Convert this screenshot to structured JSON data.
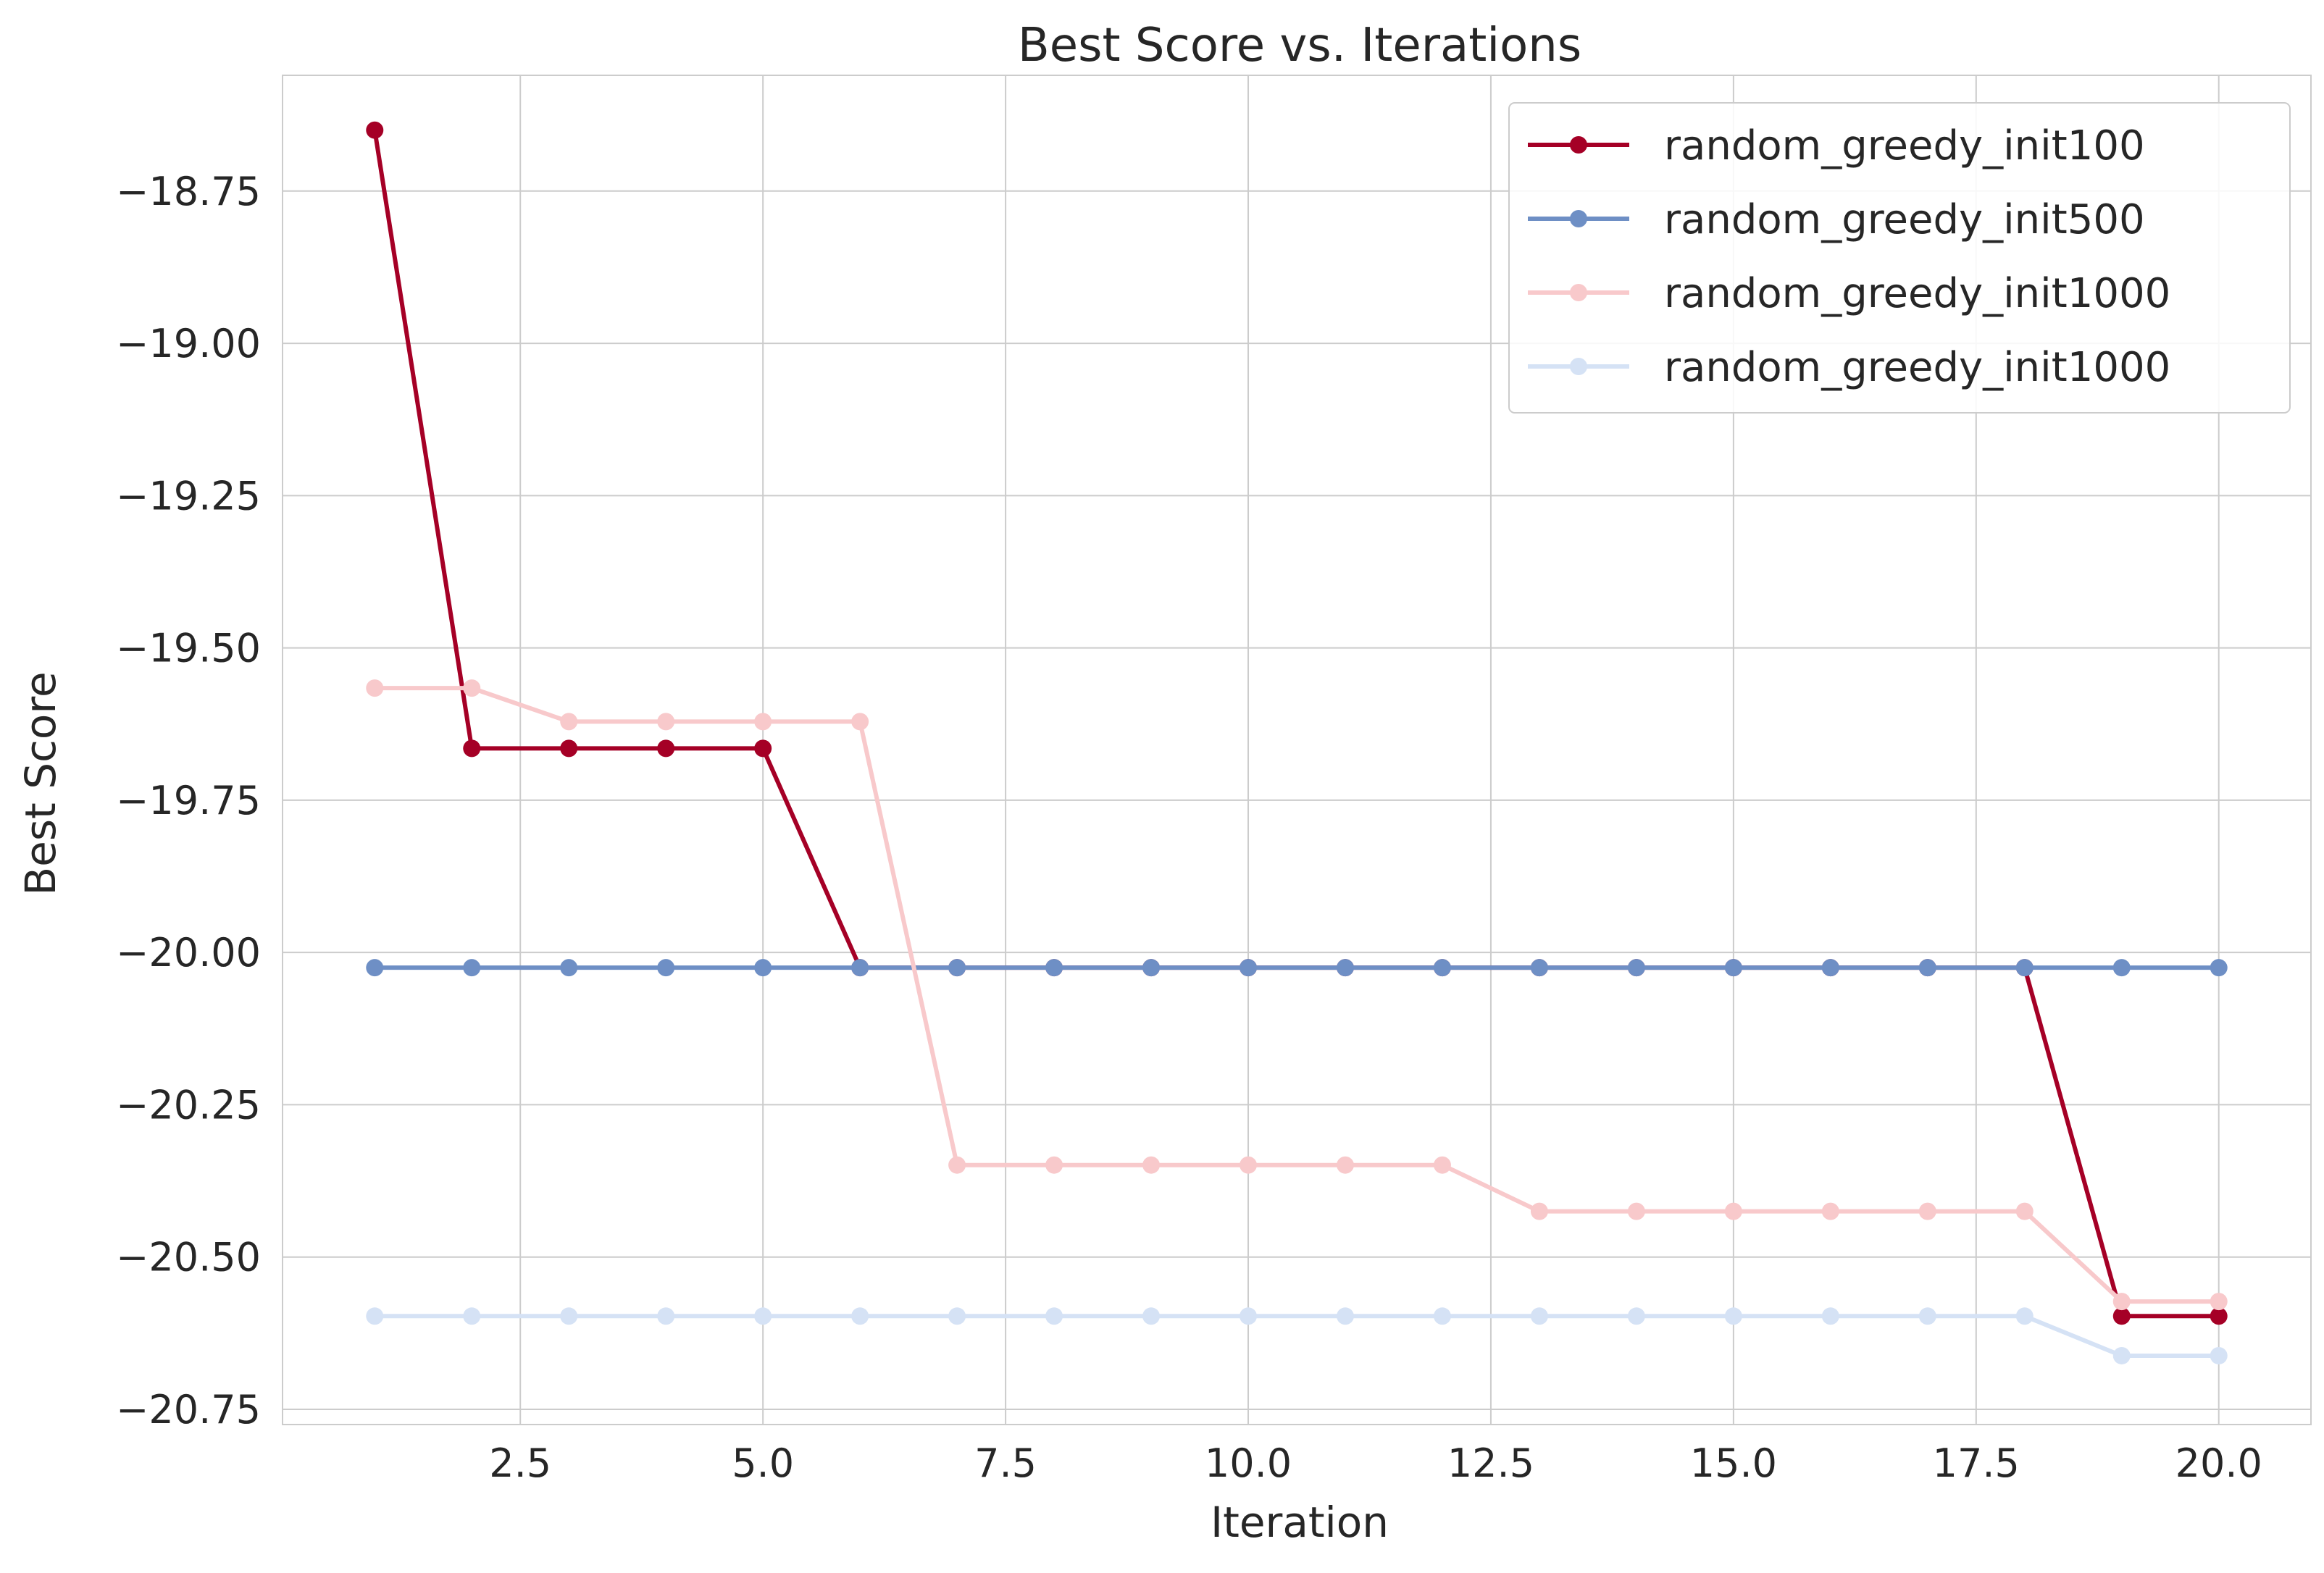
{
  "chart_data": {
    "type": "line",
    "title": "Best Score vs. Iterations",
    "xlabel": "Iteration",
    "ylabel": "Best Score",
    "xlim": [
      0.05,
      20.95
    ],
    "ylim": [
      -20.775,
      -18.56
    ],
    "xticks": [
      2.5,
      5.0,
      7.5,
      10.0,
      12.5,
      15.0,
      17.5,
      20.0
    ],
    "xtick_labels": [
      "2.5",
      "5.0",
      "7.5",
      "10.0",
      "12.5",
      "15.0",
      "17.5",
      "20.0"
    ],
    "yticks": [
      -18.75,
      -19.0,
      -19.25,
      -19.5,
      -19.75,
      -20.0,
      -20.25,
      -20.5,
      -20.75
    ],
    "ytick_labels": [
      "−18.75",
      "−19.00",
      "−19.25",
      "−19.50",
      "−19.75",
      "−20.00",
      "−20.25",
      "−20.50",
      "−20.75"
    ],
    "grid": true,
    "legend_position": "top-right",
    "x": [
      1,
      2,
      3,
      4,
      5,
      6,
      7,
      8,
      9,
      10,
      11,
      12,
      13,
      14,
      15,
      16,
      17,
      18,
      19,
      20
    ],
    "series": [
      {
        "name": "random_greedy_init100",
        "color": "#a50026",
        "values": [
          -18.65,
          -19.665,
          -19.665,
          -19.665,
          -19.665,
          -20.025,
          -20.025,
          -20.025,
          -20.025,
          -20.025,
          -20.025,
          -20.025,
          -20.025,
          -20.025,
          -20.025,
          -20.025,
          -20.025,
          -20.025,
          -20.597,
          -20.597
        ]
      },
      {
        "name": "random_greedy_init500",
        "color": "#6e8fc5",
        "values": [
          -20.025,
          -20.025,
          -20.025,
          -20.025,
          -20.025,
          -20.025,
          -20.025,
          -20.025,
          -20.025,
          -20.025,
          -20.025,
          -20.025,
          -20.025,
          -20.025,
          -20.025,
          -20.025,
          -20.025,
          -20.025,
          -20.025,
          -20.025
        ]
      },
      {
        "name": "random_greedy_init1000",
        "color": "#f8c9cb",
        "values": [
          -19.566,
          -19.566,
          -19.621,
          -19.621,
          -19.621,
          -19.621,
          -20.349,
          -20.349,
          -20.349,
          -20.349,
          -20.349,
          -20.349,
          -20.425,
          -20.425,
          -20.425,
          -20.425,
          -20.425,
          -20.425,
          -20.573,
          -20.573
        ]
      },
      {
        "name": "random_greedy_init1000",
        "color": "#d5e2f5",
        "values": [
          -20.597,
          -20.597,
          -20.597,
          -20.597,
          -20.597,
          -20.597,
          -20.597,
          -20.597,
          -20.597,
          -20.597,
          -20.597,
          -20.597,
          -20.597,
          -20.597,
          -20.597,
          -20.597,
          -20.597,
          -20.597,
          -20.662,
          -20.662
        ]
      }
    ]
  }
}
